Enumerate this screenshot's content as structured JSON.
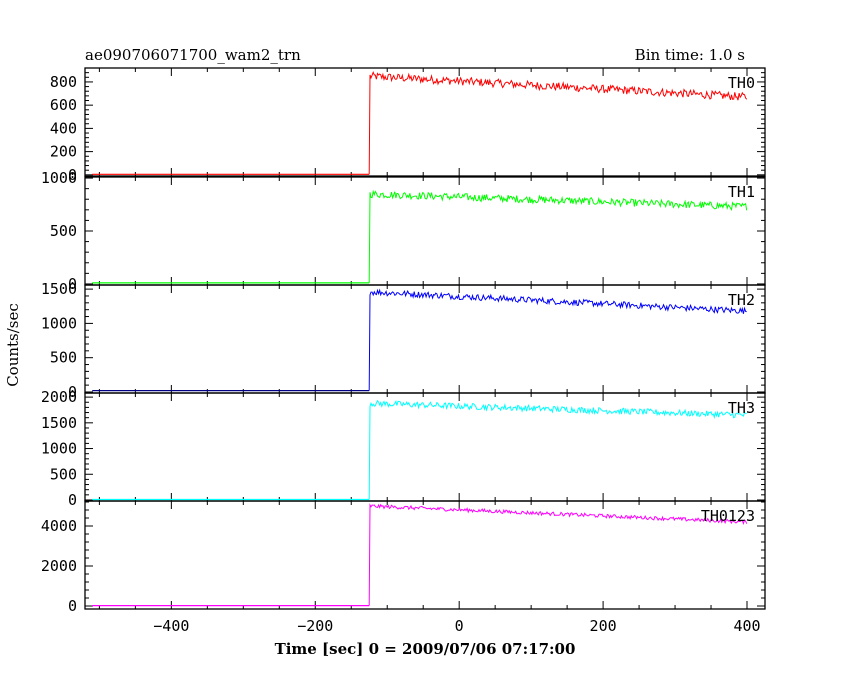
{
  "header": {
    "title": "ae090706071700_wam2_trn",
    "bin_time": "Bin time: 1.0 s"
  },
  "chart_data": {
    "type": "line",
    "xlabel": "Time [sec] 0 = 2009/07/06 07:17:00",
    "ylabel": "Counts/sec",
    "xlim": [
      -520,
      425
    ],
    "x_ticks": [
      -400,
      -200,
      0,
      200,
      400
    ],
    "grid": false,
    "panels": [
      {
        "name": "TH0",
        "color": "#ff0000",
        "ylim": [
          -10,
          920
        ],
        "y_ticks": [
          0,
          200,
          400,
          600,
          800
        ],
        "baseline": 5,
        "trigger_time": -125,
        "peak": 850,
        "end_value": 670,
        "noise": 35,
        "data_start": -510,
        "data_end": 400
      },
      {
        "name": "TH1",
        "color": "#00ff00",
        "ylim": [
          -10,
          1010
        ],
        "y_ticks": [
          0,
          500,
          1000
        ],
        "baseline": 10,
        "trigger_time": -125,
        "peak": 850,
        "end_value": 730,
        "noise": 35,
        "data_start": -510,
        "data_end": 400
      },
      {
        "name": "TH2",
        "color": "#0000ff",
        "ylim": [
          -15,
          1560
        ],
        "y_ticks": [
          0,
          500,
          1000,
          1500
        ],
        "baseline": 20,
        "trigger_time": -125,
        "peak": 1460,
        "end_value": 1180,
        "noise": 45,
        "data_start": -510,
        "data_end": 400,
        "baseline_color": "#000080"
      },
      {
        "name": "TH3",
        "color": "#00ffff",
        "ylim": [
          -20,
          2080
        ],
        "y_ticks": [
          0,
          500,
          1000,
          1500,
          2000
        ],
        "baseline": 10,
        "trigger_time": -125,
        "peak": 1880,
        "end_value": 1650,
        "noise": 60,
        "data_start": -510,
        "data_end": 400
      },
      {
        "name": "TH0123",
        "color": "#ff00ff",
        "ylim": [
          -150,
          5250
        ],
        "y_ticks": [
          0,
          2000,
          4000
        ],
        "baseline": 20,
        "trigger_time": -125,
        "peak": 5000,
        "end_value": 4200,
        "noise": 90,
        "data_start": -510,
        "data_end": 400
      }
    ]
  }
}
